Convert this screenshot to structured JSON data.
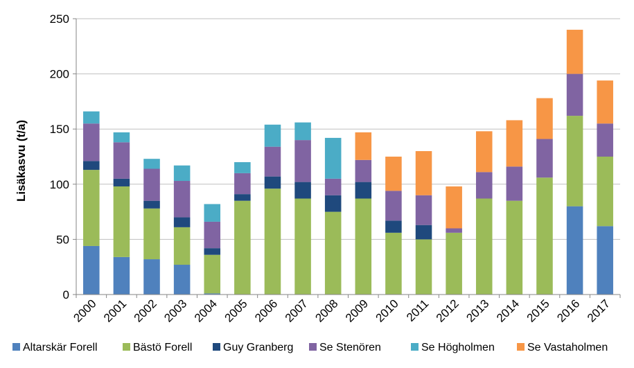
{
  "chart_data": {
    "type": "bar",
    "stacked": true,
    "ylabel": "Lisäkasvu (t/a)",
    "ylim": [
      0,
      250
    ],
    "yticks": [
      0,
      50,
      100,
      150,
      200,
      250
    ],
    "grid": true,
    "legend_position": "bottom",
    "categories": [
      "2000",
      "2001",
      "2002",
      "2003",
      "2004",
      "2005",
      "2006",
      "2007",
      "2008",
      "2009",
      "2010",
      "2011",
      "2012",
      "2013",
      "2014",
      "2015",
      "2016",
      "2017"
    ],
    "series": [
      {
        "name": "Altarskär Forell",
        "color": "#4f81bd",
        "values": [
          44,
          34,
          32,
          27,
          1,
          0,
          0,
          0,
          0,
          0,
          0,
          0,
          0,
          0,
          0,
          0,
          80,
          62
        ]
      },
      {
        "name": "Bästö Forell",
        "color": "#9bbb59",
        "values": [
          69,
          64,
          46,
          34,
          35,
          85,
          96,
          87,
          75,
          87,
          56,
          50,
          56,
          87,
          85,
          106,
          82,
          63
        ]
      },
      {
        "name": "Guy Granberg",
        "color": "#1f497d",
        "values": [
          8,
          7,
          7,
          9,
          6,
          6,
          11,
          15,
          15,
          15,
          11,
          13,
          0,
          0,
          0,
          0,
          0,
          0
        ]
      },
      {
        "name": "Se Stenören",
        "color": "#8064a2",
        "values": [
          34,
          33,
          29,
          33,
          24,
          19,
          27,
          38,
          15,
          20,
          27,
          27,
          4,
          24,
          31,
          35,
          38,
          30
        ]
      },
      {
        "name": "Se Högholmen",
        "color": "#4bacc6",
        "values": [
          11,
          9,
          9,
          14,
          16,
          10,
          20,
          16,
          37,
          0,
          0,
          0,
          0,
          0,
          0,
          0,
          0,
          0
        ]
      },
      {
        "name": "Se Vastaholmen",
        "color": "#f79646",
        "values": [
          0,
          0,
          0,
          0,
          0,
          0,
          0,
          0,
          0,
          25,
          31,
          40,
          38,
          37,
          42,
          37,
          40,
          39
        ]
      }
    ]
  }
}
